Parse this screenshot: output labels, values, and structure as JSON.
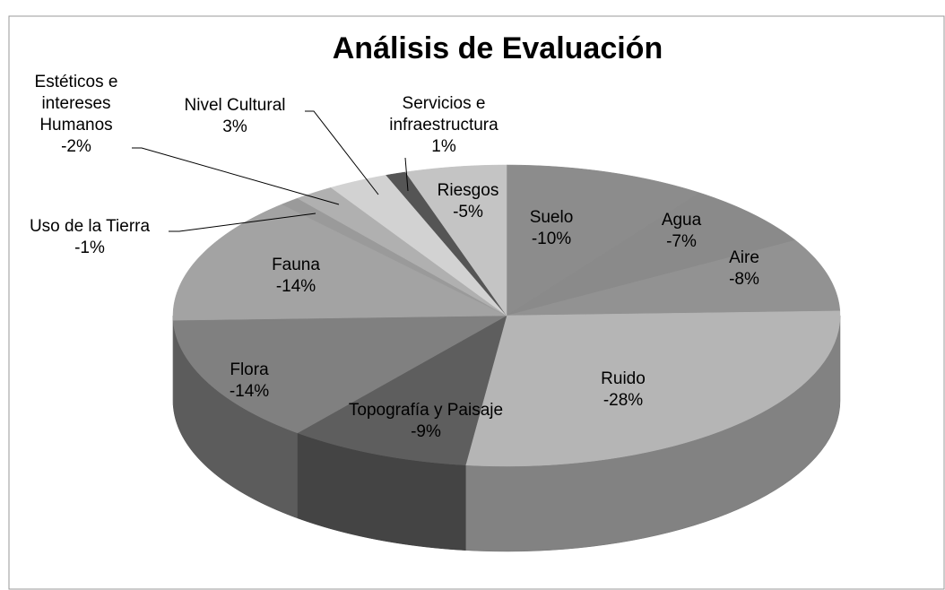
{
  "chart_data": {
    "type": "pie3d",
    "title": "Análisis de Evaluación",
    "categories": [
      "Suelo",
      "Agua",
      "Aire",
      "Ruido",
      "Topografía y Paisaje",
      "Flora",
      "Fauna",
      "Uso de la Tierra",
      "Estéticos e intereses Humanos",
      "Nivel Cultural",
      "Servicios e infraestructura",
      "Riesgos"
    ],
    "values": [
      -10,
      -7,
      -8,
      -28,
      -9,
      -14,
      -14,
      -1,
      -2,
      3,
      1,
      -5
    ],
    "value_labels": [
      "-10%",
      "-7%",
      "-8%",
      "-28%",
      "-9%",
      "-14%",
      "-14%",
      "-1%",
      "-2%",
      "3%",
      "1%",
      "-5%"
    ],
    "colors": [
      "#8c8c8c",
      "#8a8a8a",
      "#929292",
      "#b5b5b5",
      "#5e5e5e",
      "#808080",
      "#a3a3a3",
      "#9a9a9a",
      "#b0b0b0",
      "#d2d2d2",
      "#555555",
      "#c4c4c4"
    ]
  }
}
